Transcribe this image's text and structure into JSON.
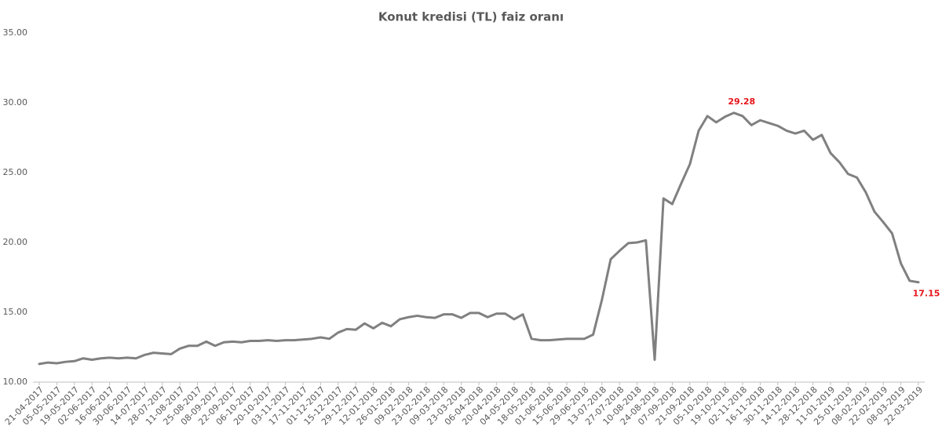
{
  "chart_data": {
    "type": "line",
    "title": "Konut kredisi (TL) faiz oranı",
    "categories": [
      "21-04-2017",
      null,
      "05-05-2017",
      null,
      "19-05-2017",
      null,
      "02-06-2017",
      null,
      "16-06-2017",
      null,
      "30-06-2017",
      null,
      "14-07-2017",
      null,
      "28-07-2017",
      null,
      "11-08-2017",
      null,
      "25-08-2017",
      null,
      "08-09-2017",
      null,
      "22-09-2017",
      null,
      "06-10-2017",
      null,
      "20-10-2017",
      null,
      "03-11-2017",
      null,
      "17-11-2017",
      null,
      "01-12-2017",
      null,
      "15-12-2017",
      null,
      "29-12-2017",
      null,
      "12-01-2018",
      null,
      "26-01-2018",
      null,
      "09-02-2018",
      null,
      "23-02-2018",
      null,
      "09-03-2018",
      null,
      "23-03-2018",
      null,
      "06-04-2018",
      null,
      "20-04-2018",
      null,
      "04-05-2018",
      null,
      "18-05-2018",
      null,
      "01-06-2018",
      null,
      "15-06-2018",
      null,
      "29-06-2018",
      null,
      "13-07-2018",
      null,
      "27-07-2018",
      null,
      "10-08-2018",
      null,
      "24-08-2018",
      null,
      "07-09-2018",
      null,
      "21-09-2018",
      null,
      "05-10-2018",
      null,
      "19-10-2018",
      null,
      "02-11-2018",
      null,
      "16-11-2018",
      null,
      "30-11-2018",
      null,
      "14-12-2018",
      null,
      "28-12-2018",
      null,
      "11-01-2019",
      null,
      "25-01-2019",
      null,
      "08-02-2019",
      null,
      "22-02-2019",
      null,
      "08-03-2019",
      null,
      "22-03-2019"
    ],
    "values": [
      11.3,
      11.4,
      11.35,
      11.45,
      11.5,
      11.7,
      11.6,
      11.7,
      11.75,
      11.7,
      11.75,
      11.7,
      11.95,
      12.1,
      12.05,
      12.0,
      12.4,
      12.6,
      12.6,
      12.9,
      12.6,
      12.85,
      12.9,
      12.85,
      12.95,
      12.95,
      13.0,
      12.95,
      13.0,
      13.0,
      13.05,
      13.1,
      13.2,
      13.1,
      13.55,
      13.8,
      13.75,
      14.2,
      13.85,
      14.25,
      14.0,
      14.5,
      14.65,
      14.75,
      14.65,
      14.6,
      14.85,
      14.85,
      14.6,
      14.95,
      14.95,
      14.65,
      14.9,
      14.9,
      14.5,
      14.85,
      13.1,
      13.0,
      13.0,
      13.05,
      13.1,
      13.1,
      13.1,
      13.4,
      15.9,
      18.8,
      19.4,
      19.95,
      20.0,
      20.15,
      11.6,
      23.15,
      22.75,
      24.2,
      25.6,
      28.0,
      29.05,
      28.6,
      29.0,
      29.28,
      29.05,
      28.4,
      28.75,
      28.55,
      28.35,
      28.0,
      27.8,
      28.0,
      27.35,
      27.7,
      26.4,
      25.75,
      24.9,
      24.65,
      23.6,
      22.2,
      21.45,
      20.65,
      18.5,
      17.25,
      17.15
    ],
    "value_labels": [
      null,
      null,
      null,
      null,
      null,
      null,
      null,
      null,
      null,
      null,
      null,
      null,
      null,
      null,
      null,
      null,
      null,
      null,
      null,
      null,
      null,
      null,
      null,
      null,
      null,
      null,
      null,
      null,
      null,
      null,
      null,
      null,
      null,
      null,
      null,
      null,
      null,
      null,
      null,
      null,
      null,
      null,
      null,
      null,
      null,
      null,
      null,
      null,
      null,
      null,
      null,
      null,
      null,
      null,
      null,
      null,
      null,
      null,
      null,
      null,
      null,
      null,
      null,
      null,
      null,
      null,
      null,
      null,
      null,
      null,
      null,
      null,
      null,
      null,
      null,
      null,
      null,
      null,
      null,
      "29.28",
      null,
      null,
      null,
      null,
      null,
      null,
      null,
      null,
      null,
      null,
      null,
      null,
      null,
      null,
      null,
      null,
      null,
      null,
      null,
      null,
      "17.15"
    ],
    "color": "#808080",
    "label_color": "#e8141a",
    "ylim": [
      10,
      35
    ],
    "yticks": [
      {
        "value": 10,
        "label": "10.00"
      },
      {
        "value": 15,
        "label": "15.00"
      },
      {
        "value": 20,
        "label": "20.00"
      },
      {
        "value": 25,
        "label": "25.00"
      },
      {
        "value": 30,
        "label": "30.00"
      },
      {
        "value": 35,
        "label": "35.00"
      }
    ],
    "grid": false
  }
}
